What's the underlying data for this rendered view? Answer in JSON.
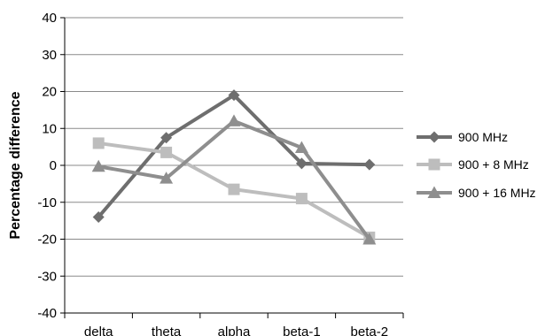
{
  "chart_data": {
    "type": "line",
    "title": "",
    "xlabel": "",
    "ylabel": "Percentage difference",
    "categories": [
      "delta",
      "theta",
      "alpha",
      "beta-1",
      "beta-2"
    ],
    "ylim": [
      -40,
      40
    ],
    "yticks": [
      -40,
      -30,
      -20,
      -10,
      0,
      10,
      20,
      30,
      40
    ],
    "grid": "horizontal",
    "legend_position": "right",
    "series": [
      {
        "name": "900 MHz",
        "values": [
          -14,
          7.5,
          19,
          0.5,
          0.2
        ],
        "color": "#6e6e6e",
        "marker": "diamond"
      },
      {
        "name": "900 + 8 MHz",
        "values": [
          6,
          3.5,
          -6.5,
          -9,
          -19.5
        ],
        "color": "#bdbdbd",
        "marker": "square"
      },
      {
        "name": "900 + 16 MHz",
        "values": [
          -0.3,
          -3.5,
          12,
          4.8,
          -20
        ],
        "color": "#8e8e8e",
        "marker": "triangle"
      }
    ]
  }
}
